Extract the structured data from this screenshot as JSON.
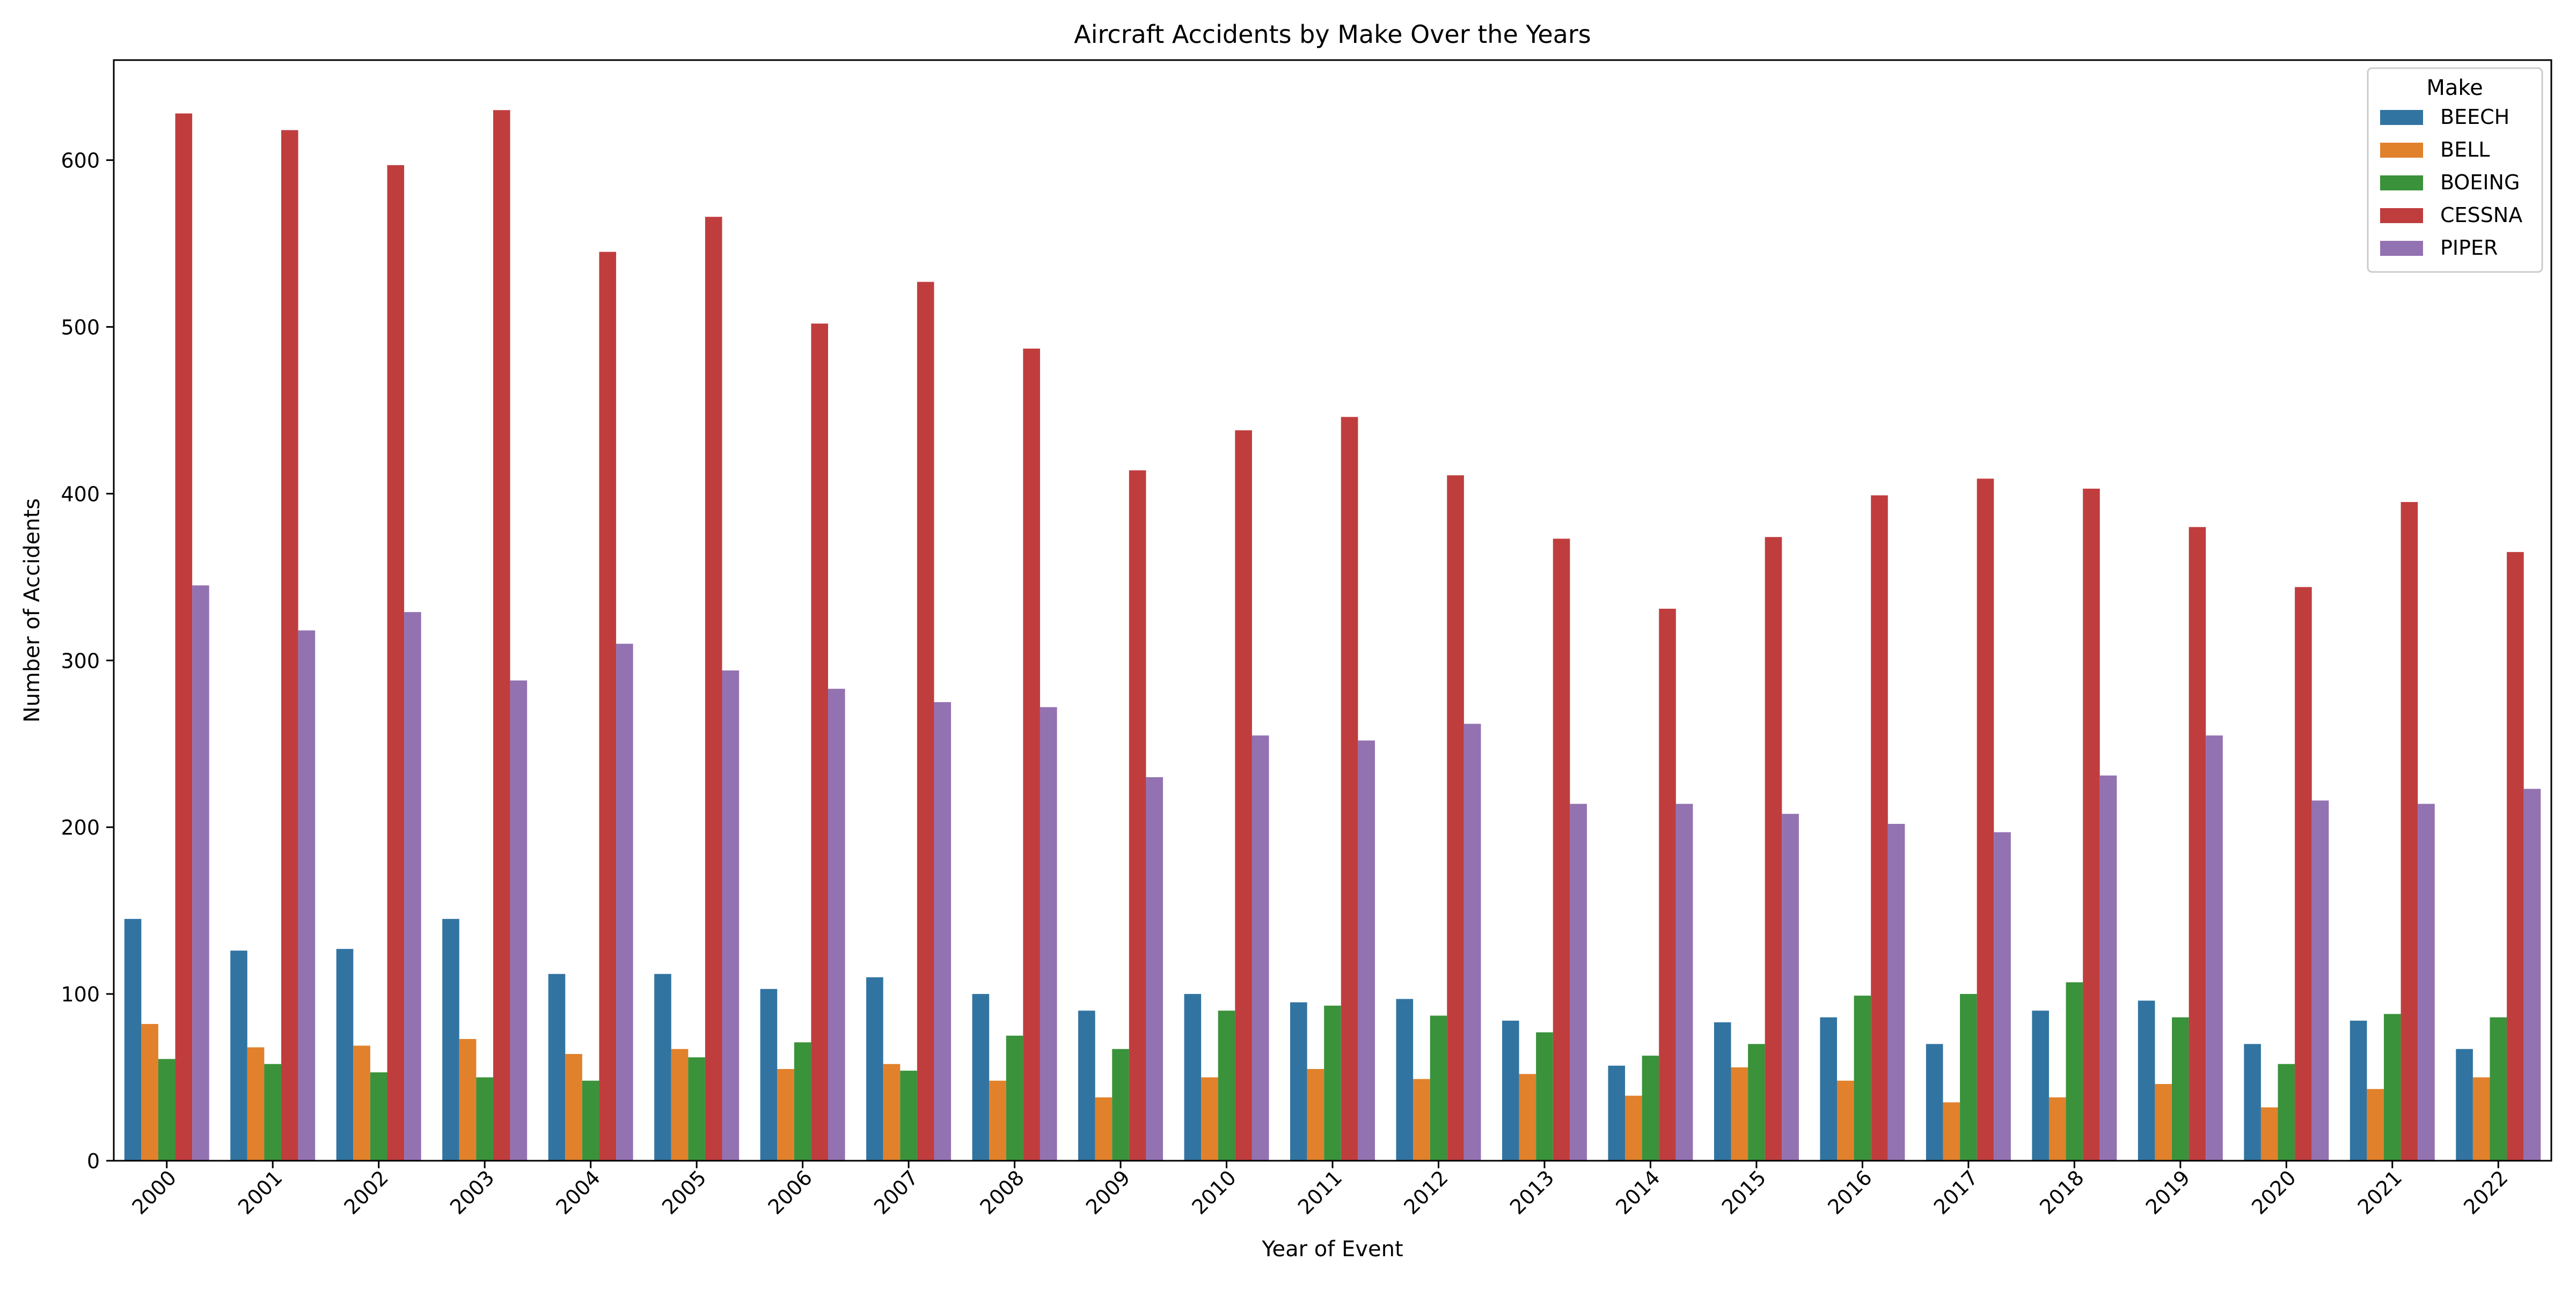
{
  "chart_data": {
    "type": "bar",
    "title": "Aircraft Accidents by Make Over the Years",
    "xlabel": "Year of Event",
    "ylabel": "Number of Accidents",
    "ylim": [
      0,
      660
    ],
    "yticks": [
      0,
      100,
      200,
      300,
      400,
      500,
      600
    ],
    "grid": false,
    "legend": {
      "title": "Make",
      "position": "top-right"
    },
    "categories": [
      "2000",
      "2001",
      "2002",
      "2003",
      "2004",
      "2005",
      "2006",
      "2007",
      "2008",
      "2009",
      "2010",
      "2011",
      "2012",
      "2013",
      "2014",
      "2015",
      "2016",
      "2017",
      "2018",
      "2019",
      "2020",
      "2021",
      "2022"
    ],
    "series": [
      {
        "name": "BEECH",
        "color": "#3274a1",
        "values": [
          145,
          126,
          127,
          145,
          112,
          112,
          103,
          110,
          100,
          90,
          100,
          95,
          97,
          84,
          57,
          83,
          86,
          70,
          90,
          96,
          70,
          84,
          67
        ]
      },
      {
        "name": "BELL",
        "color": "#e1812c",
        "values": [
          82,
          68,
          69,
          73,
          64,
          67,
          55,
          58,
          48,
          38,
          50,
          55,
          49,
          52,
          39,
          56,
          48,
          35,
          38,
          46,
          32,
          43,
          50
        ]
      },
      {
        "name": "BOEING",
        "color": "#3a923a",
        "values": [
          61,
          58,
          53,
          50,
          48,
          62,
          71,
          54,
          75,
          67,
          90,
          93,
          87,
          77,
          63,
          70,
          99,
          100,
          107,
          86,
          58,
          88,
          86
        ]
      },
      {
        "name": "CESSNA",
        "color": "#c03d3e",
        "values": [
          628,
          618,
          597,
          630,
          545,
          566,
          502,
          527,
          487,
          414,
          438,
          446,
          411,
          373,
          331,
          374,
          399,
          409,
          403,
          380,
          344,
          395,
          365
        ]
      },
      {
        "name": "PIPER",
        "color": "#9372b2",
        "values": [
          345,
          318,
          329,
          288,
          310,
          294,
          283,
          275,
          272,
          230,
          255,
          252,
          262,
          214,
          214,
          208,
          202,
          197,
          231,
          255,
          216,
          214,
          223
        ]
      }
    ]
  }
}
